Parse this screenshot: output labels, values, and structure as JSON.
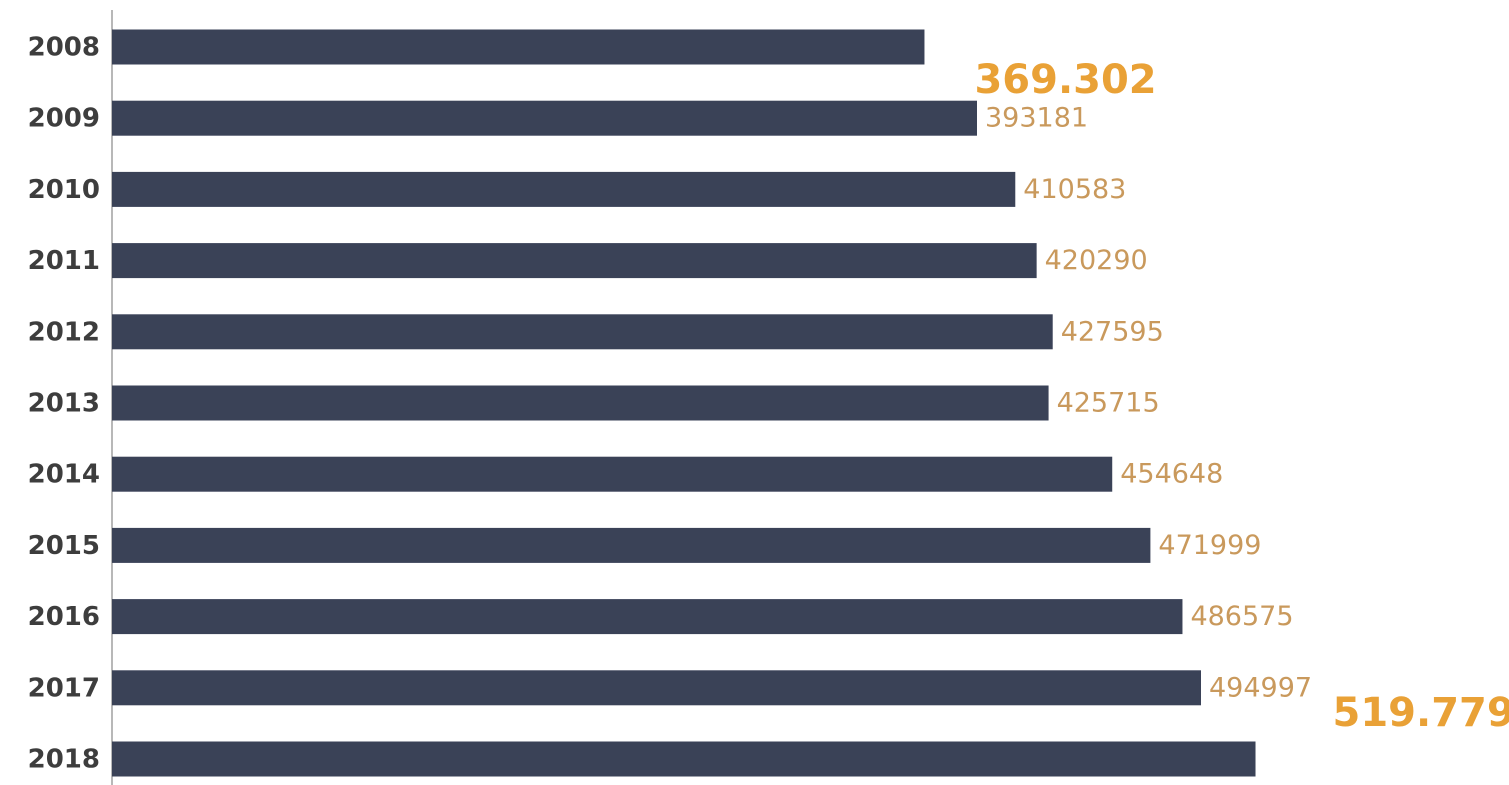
{
  "chart_data": {
    "type": "bar",
    "orientation": "horizontal",
    "categories": [
      "2008",
      "2009",
      "2010",
      "2011",
      "2012",
      "2013",
      "2014",
      "2015",
      "2016",
      "2017",
      "2018"
    ],
    "values": [
      369302,
      393181,
      410583,
      420290,
      427595,
      425715,
      454648,
      471999,
      486575,
      494997,
      519779
    ],
    "value_labels": [
      "369.302",
      "393181",
      "410583",
      "420290",
      "427595",
      "425715",
      "454648",
      "471999",
      "486575",
      "494997",
      "519.779"
    ],
    "color": "#3a4257",
    "xlim": [
      0,
      635000
    ]
  }
}
